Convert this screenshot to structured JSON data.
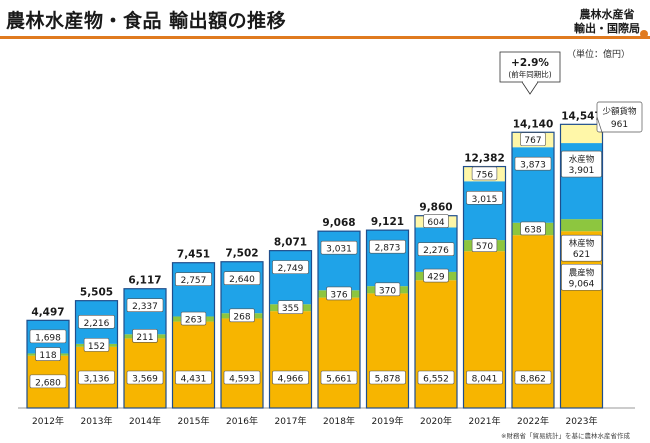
{
  "title": "農林水産物・食品 輸出額の推移",
  "ministry": {
    "line1": "農林水産省",
    "line2": "輸出・国際局"
  },
  "unit": "（単位：億円）",
  "source": "※財務省「貿易統計」を基に農林水産省作成",
  "colors": {
    "agri": "#f7b500",
    "forest": "#8dc63f",
    "fish": "#1fa3e8",
    "small": "#fff7a8",
    "accent": "#e07a1f",
    "bar_outline": "#1f4e8c"
  },
  "growth_callout": {
    "pct": "+2.9%",
    "sub": "(前年同期比)"
  },
  "chart_data": {
    "type": "bar",
    "stacked": true,
    "categories": [
      "2012年",
      "2013年",
      "2014年",
      "2015年",
      "2016年",
      "2017年",
      "2018年",
      "2019年",
      "2020年",
      "2021年",
      "2022年",
      "2023年"
    ],
    "series": [
      {
        "name": "農産物",
        "values": [
          2680,
          3136,
          3569,
          4431,
          4593,
          4966,
          5661,
          5878,
          6552,
          8041,
          8862,
          9064
        ]
      },
      {
        "name": "林産物",
        "values": [
          118,
          152,
          211,
          263,
          268,
          355,
          376,
          370,
          429,
          570,
          638,
          621
        ]
      },
      {
        "name": "水産物",
        "values": [
          1698,
          2216,
          2337,
          2757,
          2640,
          2749,
          3031,
          2873,
          2276,
          3015,
          3873,
          3901
        ]
      },
      {
        "name": "少額貨物",
        "values": [
          null,
          null,
          null,
          null,
          null,
          null,
          null,
          null,
          604,
          756,
          767,
          961
        ]
      }
    ],
    "totals": [
      "4,497",
      "5,505",
      "6,117",
      "7,451",
      "7,502",
      "8,071",
      "9,068",
      "9,121",
      "9,860",
      "12,382",
      "14,140",
      "14,547"
    ],
    "last_bar_labels": {
      "small": {
        "name": "少額貨物",
        "value": "961"
      },
      "fish": {
        "name": "水産物",
        "value": "3,901"
      },
      "forest": {
        "name": "林産物",
        "value": "621"
      },
      "agri": {
        "name": "農産物",
        "value": "9,064"
      }
    }
  }
}
